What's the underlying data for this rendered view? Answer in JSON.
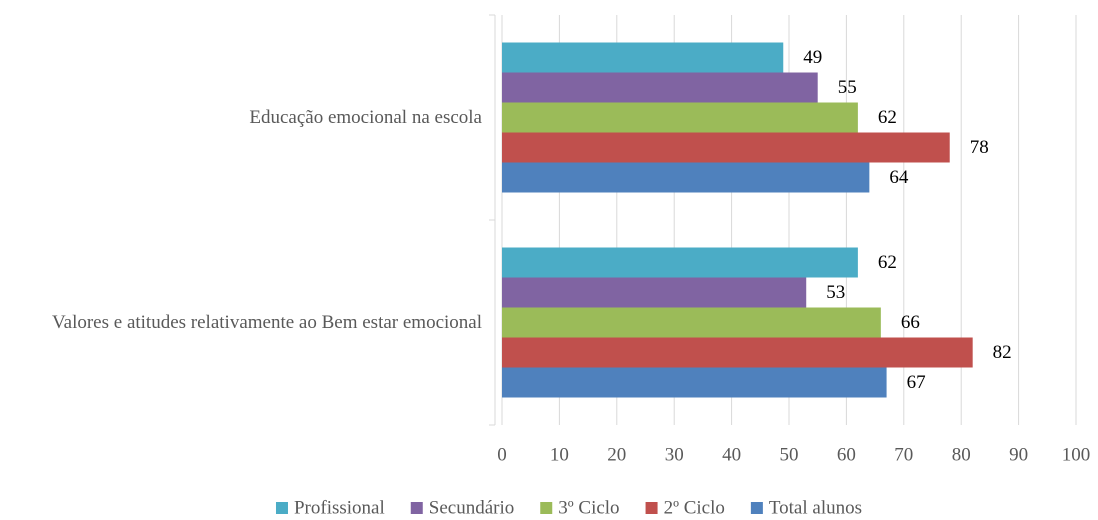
{
  "chart_data": {
    "type": "barh",
    "categories": [
      "Educação emocional na escola",
      "Valores e atitudes relativamente ao Bem estar emocional"
    ],
    "series": [
      {
        "name": "Profissional",
        "color": "#4bacc6",
        "values": [
          49,
          62
        ]
      },
      {
        "name": "Secundário",
        "color": "#8064a2",
        "values": [
          55,
          53
        ]
      },
      {
        "name": "3º Ciclo",
        "color": "#9bbb59",
        "values": [
          62,
          66
        ]
      },
      {
        "name": "2º Ciclo",
        "color": "#c0504d",
        "values": [
          78,
          82
        ]
      },
      {
        "name": "Total alunos",
        "color": "#4f81bd",
        "values": [
          64,
          67
        ]
      }
    ],
    "xlim": [
      0,
      100
    ],
    "xticks": [
      0,
      10,
      20,
      30,
      40,
      50,
      60,
      70,
      80,
      90,
      100
    ],
    "grid": true,
    "legend": "bottom"
  }
}
